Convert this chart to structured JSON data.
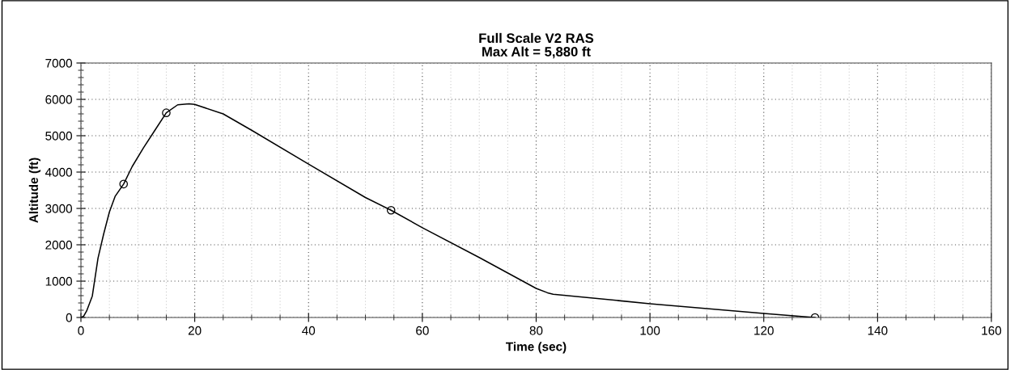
{
  "chart_data": {
    "type": "line",
    "title": "Full Scale V2 RAS\nMax Alt = 5,880 ft",
    "xlabel": "Time (sec)",
    "ylabel": "Altitude (ft)",
    "xlim": [
      0,
      160
    ],
    "ylim": [
      0,
      7000
    ],
    "xticks": [
      0,
      20,
      40,
      60,
      80,
      100,
      120,
      140,
      160
    ],
    "yticks": [
      0,
      1000,
      2000,
      3000,
      4000,
      5000,
      6000,
      7000
    ],
    "grid": true,
    "legend": false,
    "series": [
      {
        "color": "#000000",
        "marker": "none",
        "x": [
          0,
          0.5,
          1,
          2,
          3,
          4,
          5,
          6,
          7.5,
          9,
          11,
          13,
          15,
          17,
          19,
          20,
          25,
          30,
          40,
          50,
          54.5,
          60,
          70,
          80,
          82,
          83,
          100,
          120,
          128,
          129
        ],
        "values": [
          0,
          40,
          180,
          590,
          1630,
          2300,
          2900,
          3330,
          3670,
          4150,
          4670,
          5150,
          5630,
          5850,
          5880,
          5860,
          5600,
          5150,
          4220,
          3300,
          2950,
          2470,
          1650,
          800,
          680,
          640,
          380,
          110,
          10,
          0
        ]
      },
      {
        "type": "scatter",
        "color": "#000000",
        "marker": "circle",
        "x": [
          7.5,
          15,
          54.5,
          129
        ],
        "values": [
          3670,
          5630,
          2950,
          0
        ]
      }
    ]
  }
}
